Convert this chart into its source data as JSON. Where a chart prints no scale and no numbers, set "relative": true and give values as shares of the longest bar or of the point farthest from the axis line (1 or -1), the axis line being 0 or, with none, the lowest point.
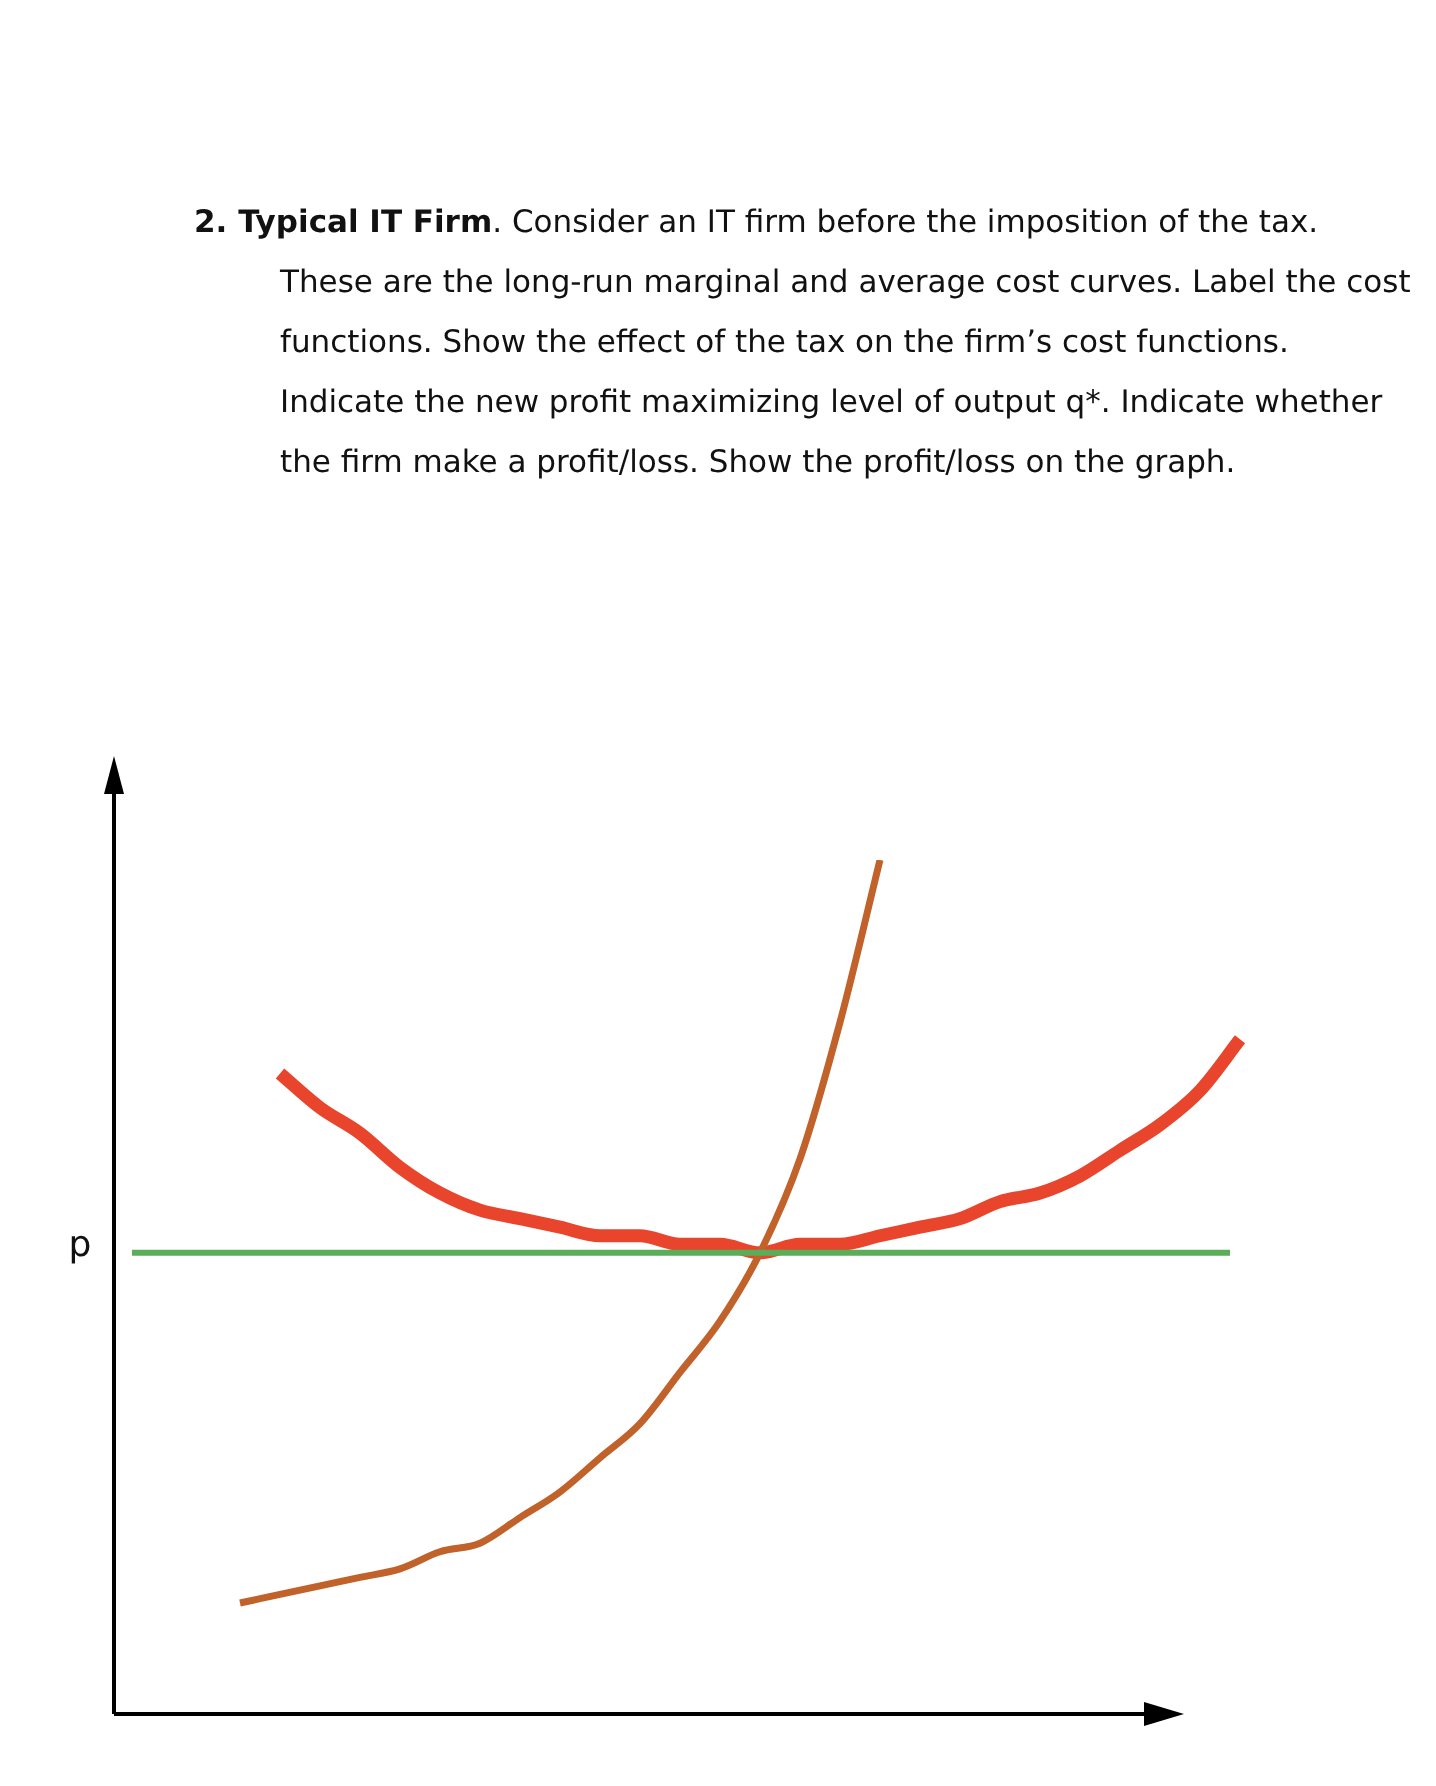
{
  "chart_data": {
    "type": "line",
    "title": "2. Typical IT Firm",
    "subtitle": ". Consider an IT firm before the imposition of the tax. These are the long-run marginal and average cost curves. Label the cost functions. Show the effect of the tax on the firm’s cost functions. Indicate the new profit maximizing level of output q*. Indicate whether the firm make a profit/loss. Show the profit/loss on the graph.",
    "relative": true,
    "legend": false,
    "marker": "none",
    "categories": [
      null,
      null,
      null,
      null,
      null,
      null,
      null,
      null,
      null,
      null,
      null,
      null,
      null,
      null,
      null,
      null,
      null,
      null,
      null,
      null,
      null,
      null,
      null,
      null,
      null,
      null,
      null,
      null,
      null
    ],
    "series": [
      {
        "color": "#c0622a",
        "values": [
          null,
          null,
          null,
          0.13,
          0.14,
          0.15,
          0.16,
          0.17,
          0.19,
          0.2,
          0.23,
          0.26,
          0.3,
          0.34,
          0.4,
          0.46,
          0.54,
          0.65,
          0.81,
          1,
          null,
          null,
          null,
          null,
          null,
          null,
          null,
          null,
          null
        ]
      },
      {
        "color": "#e8452c",
        "values": [
          null,
          null,
          null,
          null,
          0.75,
          0.71,
          0.68,
          0.64,
          0.61,
          0.59,
          0.58,
          0.57,
          0.56,
          0.56,
          0.55,
          0.55,
          0.54,
          0.55,
          0.55,
          0.56,
          0.57,
          0.58,
          0.6,
          0.61,
          0.63,
          0.66,
          0.69,
          0.73,
          0.79
        ]
      }
    ],
    "ref_lines": [
      {
        "axis": "y",
        "value": 0.54,
        "label": "p",
        "color": "#5aae5a"
      }
    ]
  }
}
